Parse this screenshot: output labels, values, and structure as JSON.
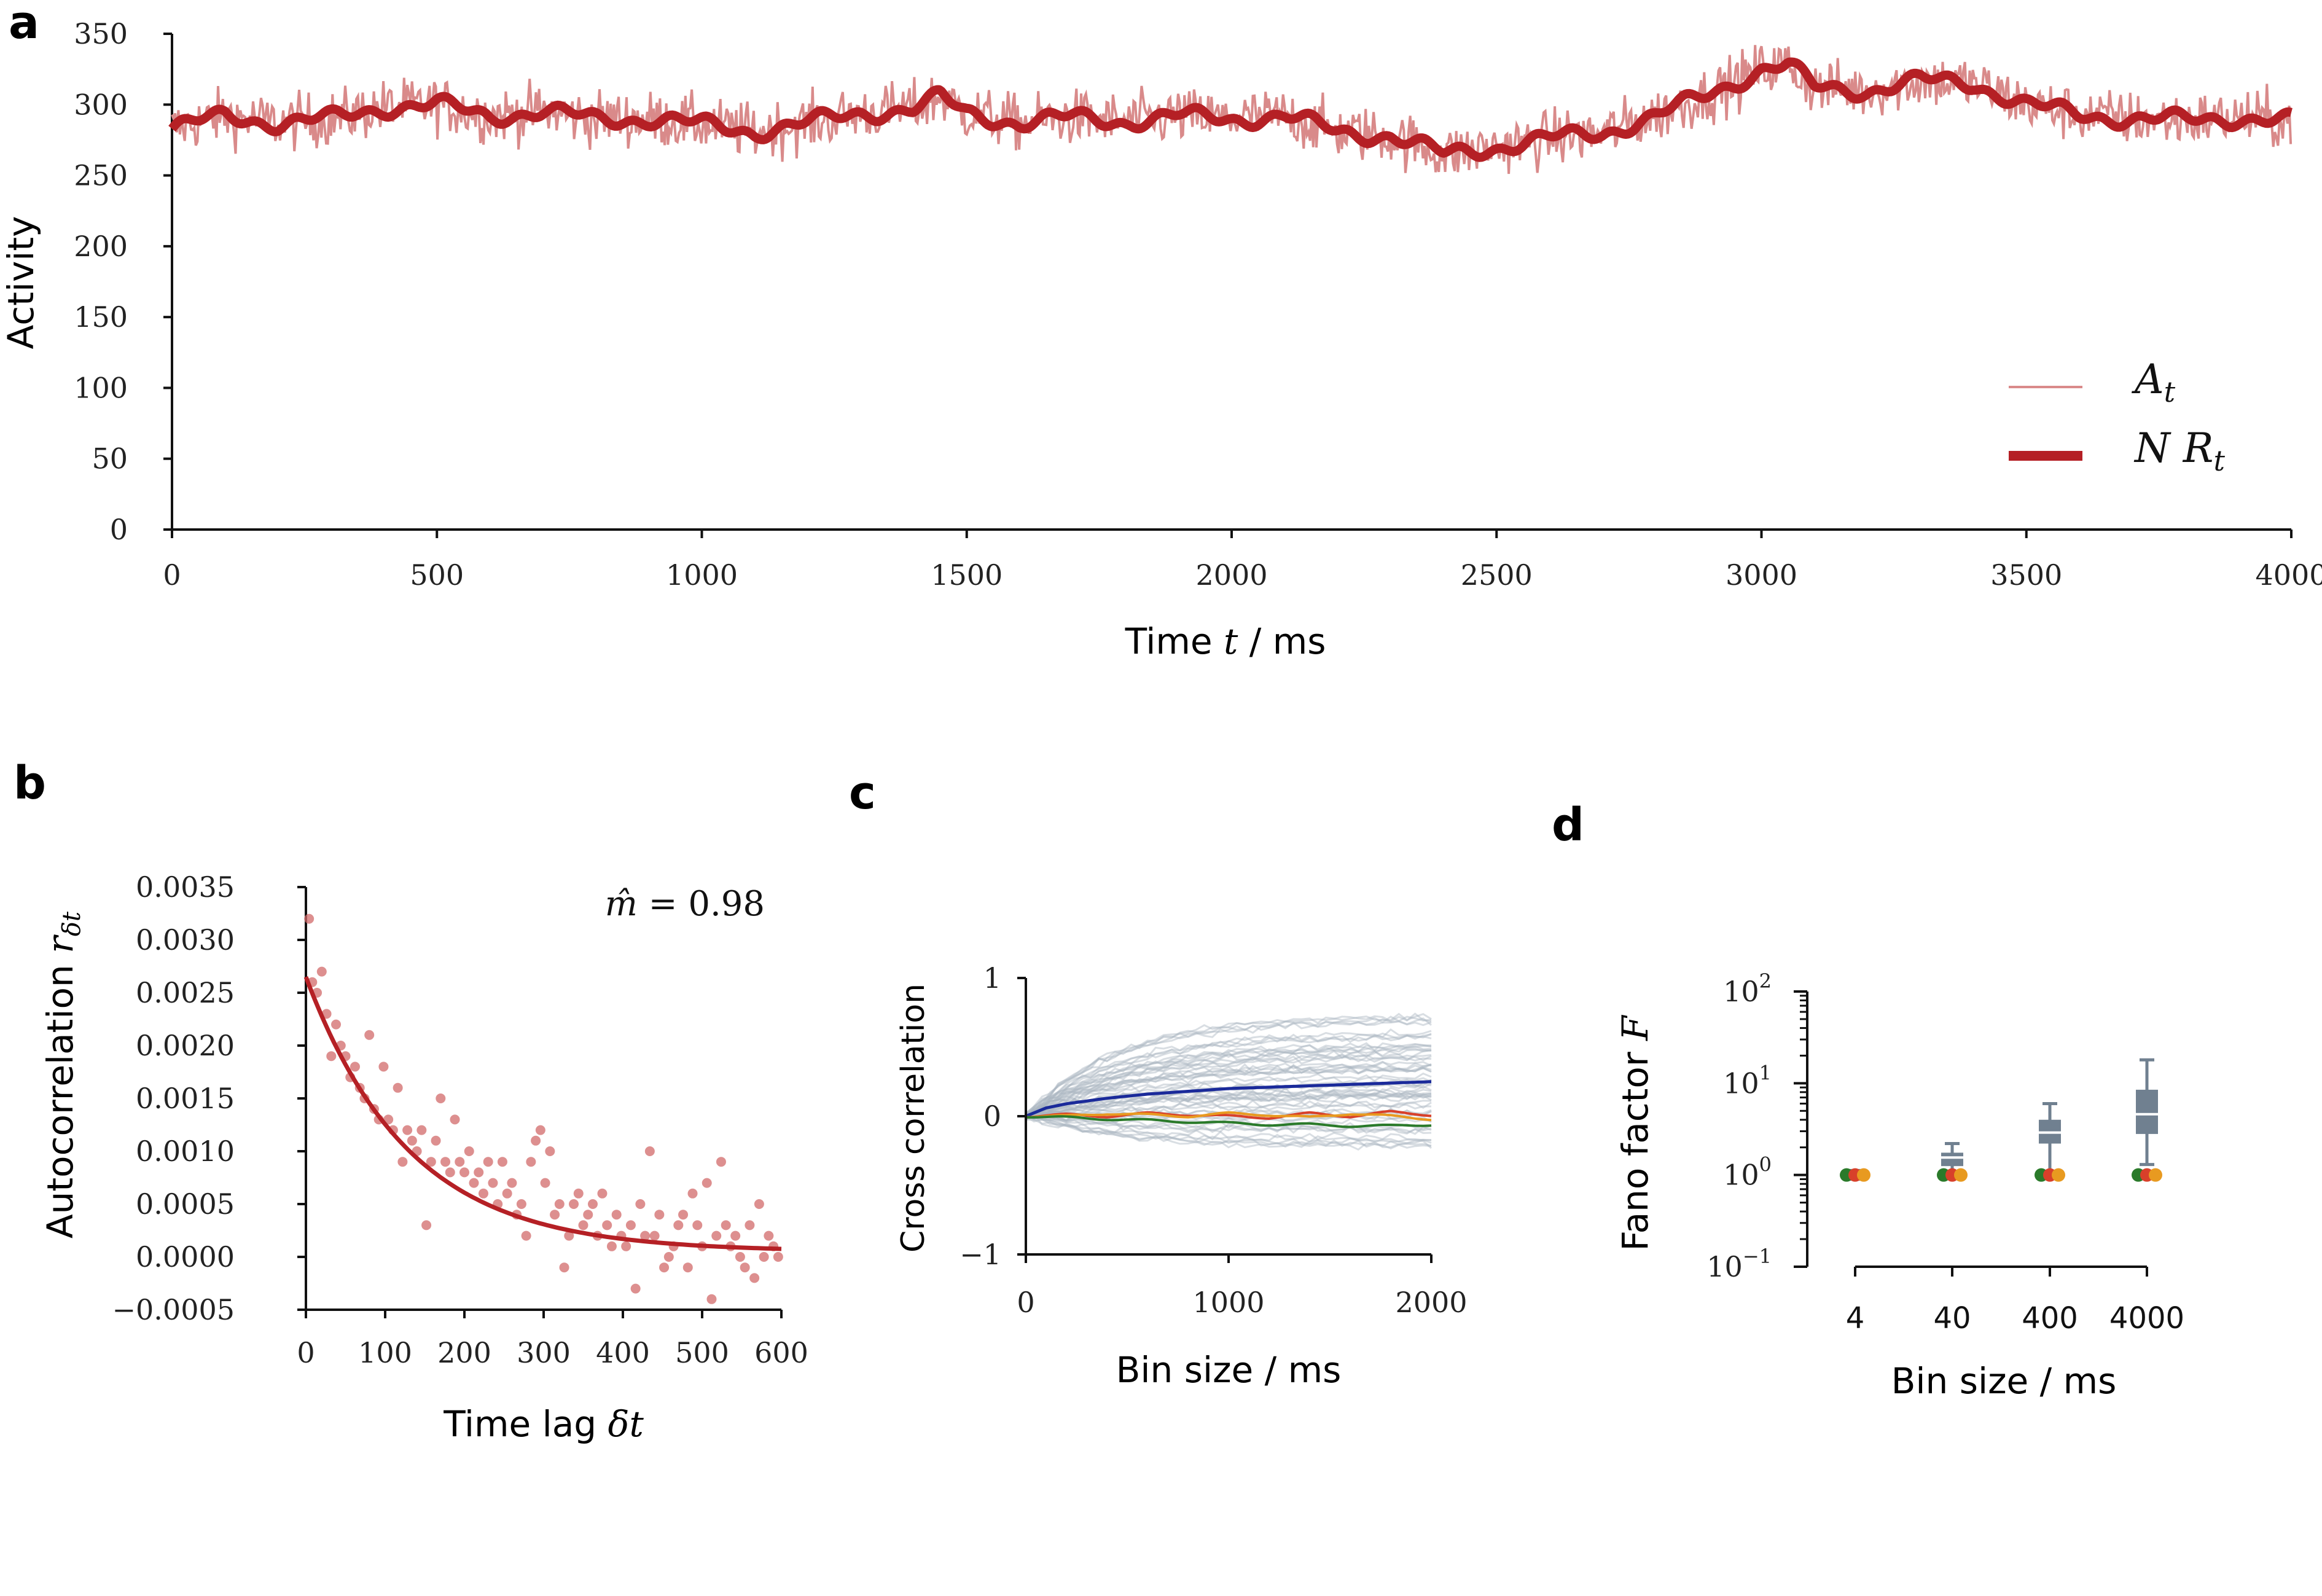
{
  "colors": {
    "activity_thin": "#d98a8a",
    "activity_thick": "#b52025",
    "scatter": "#d26a6a",
    "fit": "#b52025",
    "gray_traces": "#aab6c2",
    "blue": "#1a2a9a",
    "red": "#d8402a",
    "orange": "#e89a20",
    "green": "#2a7a2a",
    "box": "#708090"
  },
  "chart_data": [
    {
      "panel": "a",
      "type": "line",
      "xlabel_prefix": "Time ",
      "xlabel_var": "t",
      "xlabel_suffix": " / ms",
      "ylabel": "Activity",
      "xlim": [
        0,
        4000
      ],
      "ylim": [
        0,
        350
      ],
      "xticks": [
        "0",
        "500",
        "1000",
        "1500",
        "2000",
        "2500",
        "3000",
        "3500",
        "4000"
      ],
      "yticks": [
        "0",
        "50",
        "100",
        "150",
        "200",
        "250",
        "300",
        "350"
      ],
      "legend": [
        "A_t",
        "N R_t"
      ],
      "legend_display": [
        "At",
        "N Rt"
      ],
      "legend_position": "lower-right",
      "series": [
        {
          "name": "N R_t (smooth)",
          "x": [
            0,
            100,
            200,
            300,
            400,
            500,
            600,
            700,
            800,
            900,
            1000,
            1100,
            1200,
            1300,
            1400,
            1450,
            1500,
            1600,
            1700,
            1800,
            1900,
            2000,
            2100,
            2200,
            2300,
            2400,
            2500,
            2600,
            2700,
            2800,
            2900,
            3000,
            3050,
            3100,
            3200,
            3300,
            3400,
            3500,
            3600,
            3700,
            3800,
            3900,
            4000
          ],
          "values": [
            283,
            292,
            287,
            290,
            298,
            300,
            292,
            295,
            290,
            290,
            286,
            281,
            287,
            294,
            297,
            305,
            294,
            287,
            291,
            288,
            292,
            290,
            292,
            281,
            278,
            265,
            270,
            276,
            280,
            292,
            307,
            325,
            328,
            312,
            310,
            317,
            315,
            300,
            293,
            290,
            289,
            291,
            288
          ]
        }
      ]
    },
    {
      "panel": "b",
      "type": "scatter",
      "xlabel_prefix": "Time lag ",
      "xlabel_var": "δt",
      "ylabel_prefix": "Autocorrelation ",
      "ylabel_var": "r",
      "ylabel_sub": "δt",
      "annotation_prefix": "m̂ = ",
      "annotation_value": "0.98",
      "xlim": [
        0,
        600
      ],
      "ylim": [
        -0.0005,
        0.0035
      ],
      "xticks": [
        "0",
        "100",
        "200",
        "300",
        "400",
        "500",
        "600"
      ],
      "yticks": [
        "−0.0005",
        "0.0000",
        "0.0005",
        "0.0010",
        "0.0015",
        "0.0020",
        "0.0025",
        "0.0030",
        "0.0035"
      ],
      "fit": {
        "amplitude": 0.0026,
        "tau": 130,
        "m_hat": 0.98
      },
      "points": [
        [
          4,
          0.0032
        ],
        [
          8,
          0.0026
        ],
        [
          14,
          0.0025
        ],
        [
          20,
          0.0027
        ],
        [
          26,
          0.0023
        ],
        [
          32,
          0.0019
        ],
        [
          38,
          0.0022
        ],
        [
          44,
          0.002
        ],
        [
          50,
          0.0019
        ],
        [
          56,
          0.0017
        ],
        [
          62,
          0.0018
        ],
        [
          68,
          0.0016
        ],
        [
          74,
          0.0015
        ],
        [
          80,
          0.0021
        ],
        [
          86,
          0.0014
        ],
        [
          92,
          0.0013
        ],
        [
          98,
          0.0018
        ],
        [
          104,
          0.0013
        ],
        [
          110,
          0.0012
        ],
        [
          116,
          0.0016
        ],
        [
          122,
          0.0009
        ],
        [
          128,
          0.0012
        ],
        [
          134,
          0.0011
        ],
        [
          140,
          0.001
        ],
        [
          146,
          0.0012
        ],
        [
          152,
          0.0003
        ],
        [
          158,
          0.0009
        ],
        [
          164,
          0.0011
        ],
        [
          170,
          0.0015
        ],
        [
          176,
          0.0009
        ],
        [
          182,
          0.0008
        ],
        [
          188,
          0.0013
        ],
        [
          194,
          0.0009
        ],
        [
          200,
          0.0008
        ],
        [
          206,
          0.001
        ],
        [
          212,
          0.0007
        ],
        [
          218,
          0.0008
        ],
        [
          224,
          0.0006
        ],
        [
          230,
          0.0009
        ],
        [
          236,
          0.0007
        ],
        [
          242,
          0.0005
        ],
        [
          248,
          0.0009
        ],
        [
          254,
          0.0006
        ],
        [
          260,
          0.0007
        ],
        [
          266,
          0.0004
        ],
        [
          272,
          0.0005
        ],
        [
          278,
          0.0002
        ],
        [
          284,
          0.0009
        ],
        [
          290,
          0.0011
        ],
        [
          296,
          0.0012
        ],
        [
          302,
          0.0007
        ],
        [
          308,
          0.001
        ],
        [
          314,
          0.0004
        ],
        [
          320,
          0.0005
        ],
        [
          326,
          -0.0001
        ],
        [
          332,
          0.0002
        ],
        [
          338,
          0.0005
        ],
        [
          344,
          0.0006
        ],
        [
          350,
          0.0003
        ],
        [
          356,
          0.0004
        ],
        [
          362,
          0.0005
        ],
        [
          368,
          0.0002
        ],
        [
          374,
          0.0006
        ],
        [
          380,
          0.0003
        ],
        [
          386,
          0.0001
        ],
        [
          392,
          0.0004
        ],
        [
          398,
          0.0002
        ],
        [
          404,
          0.0001
        ],
        [
          410,
          0.0003
        ],
        [
          416,
          -0.0003
        ],
        [
          422,
          0.0005
        ],
        [
          428,
          0.0002
        ],
        [
          434,
          0.001
        ],
        [
          440,
          0.0002
        ],
        [
          446,
          0.0004
        ],
        [
          452,
          -0.0001
        ],
        [
          458,
          0.0
        ],
        [
          464,
          0.0001
        ],
        [
          470,
          0.0003
        ],
        [
          476,
          0.0004
        ],
        [
          482,
          -0.0001
        ],
        [
          488,
          0.0006
        ],
        [
          494,
          0.0003
        ],
        [
          500,
          0.0001
        ],
        [
          506,
          0.0007
        ],
        [
          512,
          -0.0004
        ],
        [
          518,
          0.0002
        ],
        [
          524,
          0.0009
        ],
        [
          530,
          0.0003
        ],
        [
          536,
          0.0001
        ],
        [
          542,
          0.0002
        ],
        [
          548,
          0.0
        ],
        [
          554,
          -0.0001
        ],
        [
          560,
          0.0003
        ],
        [
          566,
          -0.0002
        ],
        [
          572,
          0.0005
        ],
        [
          578,
          0.0
        ],
        [
          584,
          0.0002
        ],
        [
          590,
          0.0001
        ],
        [
          596,
          0.0
        ]
      ]
    },
    {
      "panel": "c",
      "type": "line",
      "xlabel": "Bin size / ms",
      "ylabel": "Cross correlation",
      "xlim": [
        0,
        2000
      ],
      "ylim": [
        -1,
        1
      ],
      "xticks": [
        "0",
        "1000",
        "2000"
      ],
      "yticks": [
        "−1",
        "0",
        "1"
      ],
      "series": [
        {
          "name": "mean",
          "color": "blue",
          "x": [
            0,
            100,
            200,
            400,
            600,
            800,
            1000,
            1200,
            1400,
            1600,
            1800,
            2000
          ],
          "values": [
            0,
            0.06,
            0.09,
            0.13,
            0.16,
            0.18,
            0.2,
            0.21,
            0.22,
            0.23,
            0.24,
            0.25
          ]
        },
        {
          "name": "red",
          "color": "red",
          "x": [
            0,
            200,
            400,
            600,
            800,
            1000,
            1200,
            1400,
            1600,
            1800,
            2000
          ],
          "values": [
            0,
            0.01,
            0.0,
            0.02,
            0.01,
            0.0,
            -0.01,
            0.02,
            0.0,
            0.03,
            0.01
          ]
        },
        {
          "name": "orange",
          "color": "orange",
          "x": [
            0,
            200,
            400,
            600,
            800,
            1000,
            1200,
            1400,
            1600,
            1800,
            2000
          ],
          "values": [
            0,
            0.0,
            0.02,
            0.01,
            0.0,
            0.02,
            0.01,
            -0.01,
            0.02,
            0.0,
            -0.02
          ]
        },
        {
          "name": "green",
          "color": "green",
          "x": [
            0,
            200,
            400,
            600,
            800,
            1000,
            1200,
            1400,
            1600,
            1800,
            2000
          ],
          "values": [
            0,
            -0.01,
            -0.02,
            -0.03,
            -0.04,
            -0.05,
            -0.06,
            -0.06,
            -0.07,
            -0.07,
            -0.06
          ]
        }
      ],
      "gray_trace_count": 60,
      "gray_trace_range": [
        -0.25,
        0.75
      ]
    },
    {
      "panel": "d",
      "type": "box",
      "xlabel": "Bin size / ms",
      "ylabel_prefix": "Fano factor ",
      "ylabel_var": "F",
      "yscale": "log",
      "ylim_exp": [
        -1,
        2
      ],
      "yticks_exp": [
        "−1",
        "0",
        "1",
        "2"
      ],
      "ytick_base": "10",
      "categories": [
        "4",
        "40",
        "400",
        "4000"
      ],
      "boxes": [
        {
          "whisker_low": 0.9,
          "q1": 0.97,
          "median": 1.0,
          "q3": 1.04,
          "whisker_high": 1.12
        },
        {
          "whisker_low": 0.95,
          "q1": 1.25,
          "median": 1.55,
          "q3": 1.75,
          "whisker_high": 2.2
        },
        {
          "whisker_low": 1.1,
          "q1": 2.2,
          "median": 2.9,
          "q3": 4.0,
          "whisker_high": 6.0
        },
        {
          "whisker_low": 1.3,
          "q1": 2.8,
          "median": 4.6,
          "q3": 8.5,
          "whisker_high": 18.0
        }
      ],
      "dots": [
        {
          "color": "green",
          "values": [
            1.0,
            1.0,
            1.0,
            1.0
          ]
        },
        {
          "color": "red",
          "values": [
            1.0,
            1.0,
            1.0,
            1.0
          ]
        },
        {
          "color": "orange",
          "values": [
            1.0,
            1.0,
            1.0,
            1.0
          ]
        }
      ]
    }
  ],
  "panel_labels": [
    "a",
    "b",
    "c",
    "d"
  ]
}
